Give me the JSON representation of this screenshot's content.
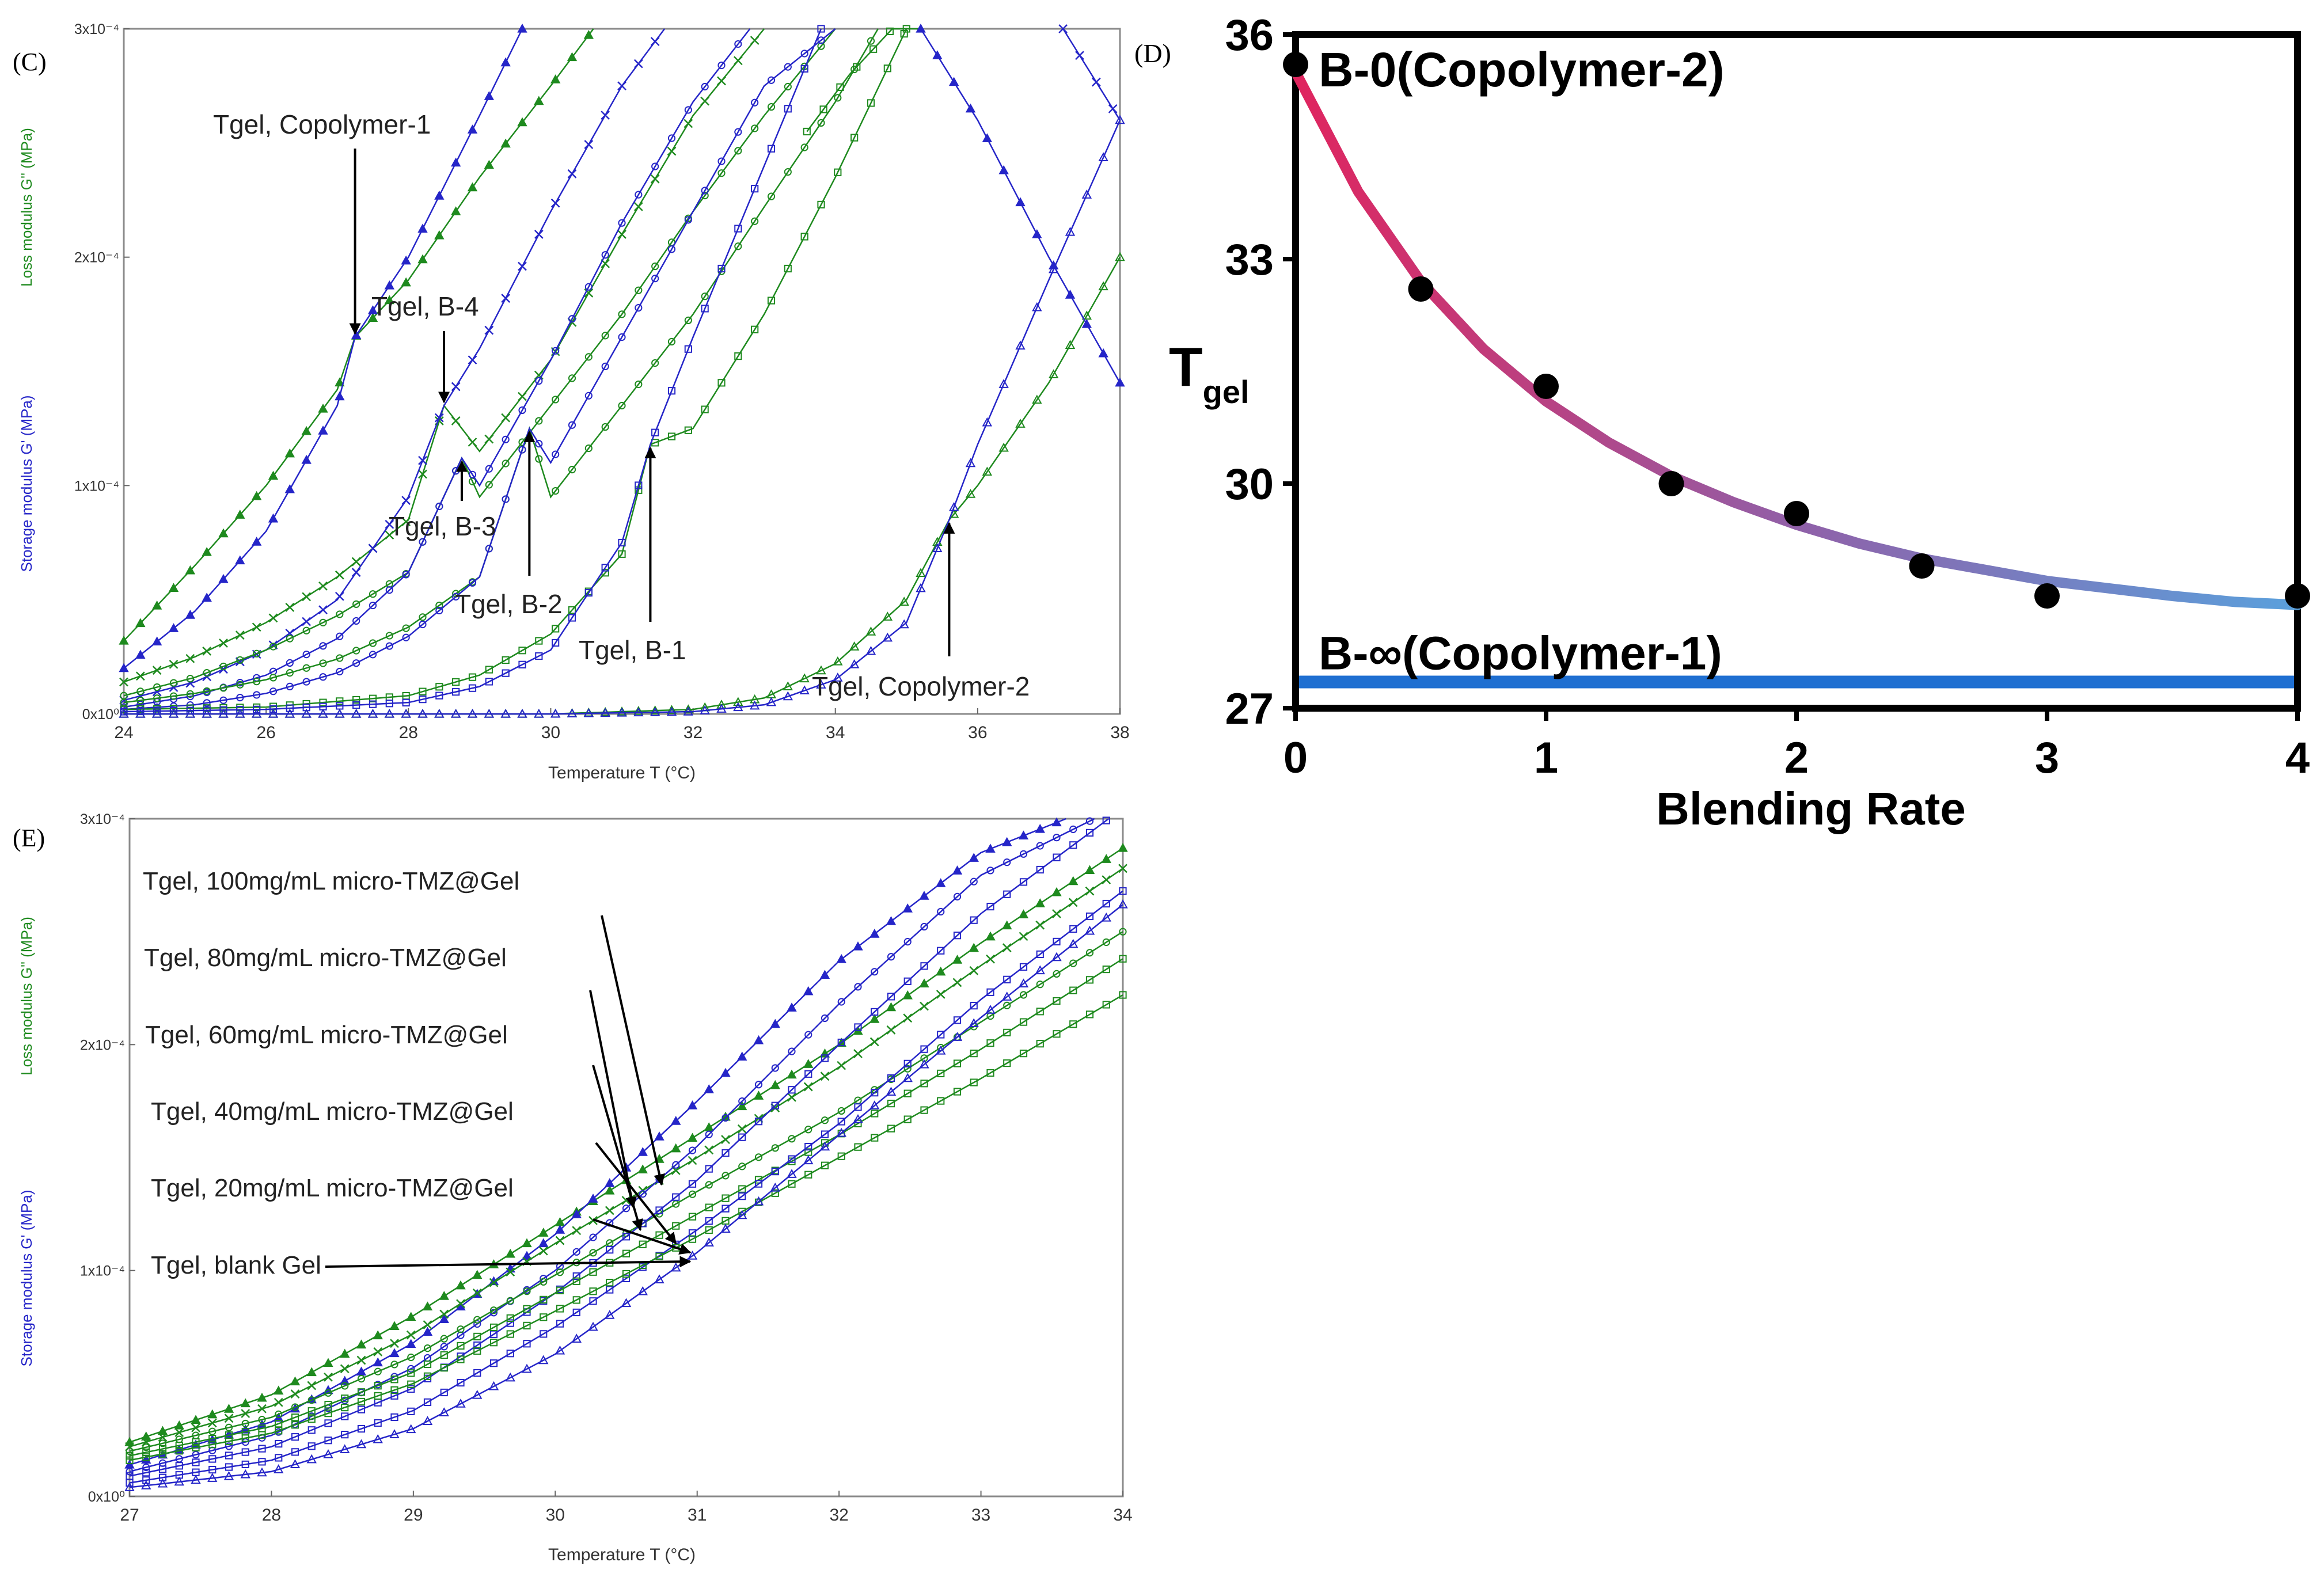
{
  "colors": {
    "green": "#1e8a1e",
    "blue": "#2525c8",
    "light_green": "#66b266",
    "light_blue": "#7a7ad8",
    "line_blue": "#1f6fd1",
    "curve_start": "#e0245e",
    "curve_end": "#5aa0dc",
    "axis": "#000000"
  },
  "chart_data": [
    {
      "panel": "(C)",
      "type": "line",
      "xlabel": "Temperature T (°C)",
      "ylabel_loss": "Loss modulus G'' (MPa)",
      "ylabel_storage": "Storage modulus G' (MPa)",
      "xlim": [
        24,
        38
      ],
      "ylim": [
        0,
        0.0003
      ],
      "x_ticks": [
        "24",
        "26",
        "28",
        "30",
        "32",
        "34",
        "36",
        "38"
      ],
      "y_ticks": [
        "0x10⁰",
        "1x10⁻⁴",
        "2x10⁻⁴",
        "3x10⁻⁴"
      ],
      "series": [
        {
          "name": "Copolymer-1 G''",
          "color": "green",
          "marker": "triangle-filled",
          "x": [
            24,
            25,
            26,
            27,
            27.25,
            28,
            29,
            30,
            30.6
          ],
          "y": [
            3.2e-05,
            6.5e-05,
            0.0001,
            0.000142,
            0.000165,
            0.00019,
            0.000235,
            0.000275,
            0.0003
          ]
        },
        {
          "name": "Copolymer-1 G'",
          "color": "blue",
          "marker": "triangle-filled",
          "x": [
            24,
            25,
            26,
            27,
            27.25,
            28,
            29,
            29.6
          ],
          "y": [
            2e-05,
            4.5e-05,
            8e-05,
            0.000135,
            0.000165,
            0.0002,
            0.000262,
            0.0003
          ]
        },
        {
          "name": "B-4 G''",
          "color": "green",
          "marker": "cross",
          "x": [
            24,
            25,
            26,
            27,
            28,
            28.5,
            29,
            30,
            31,
            32,
            33
          ],
          "y": [
            1.4e-05,
            2.5e-05,
            4e-05,
            6e-05,
            8.5e-05,
            0.000135,
            0.000115,
            0.000155,
            0.00021,
            0.000262,
            0.0003
          ]
        },
        {
          "name": "B-4 G'",
          "color": "blue",
          "marker": "cross",
          "x": [
            24,
            25,
            26,
            27,
            28,
            28.5,
            29,
            30,
            31,
            31.6
          ],
          "y": [
            6e-06,
            1.4e-05,
            2.8e-05,
            5e-05,
            9.5e-05,
            0.000135,
            0.00016,
            0.00022,
            0.000275,
            0.0003
          ]
        },
        {
          "name": "B-3 G''",
          "color": "green",
          "marker": "circle",
          "x": [
            24,
            25,
            26,
            27,
            28,
            28.75,
            29,
            30,
            31,
            32,
            33,
            34
          ],
          "y": [
            8e-06,
            1.6e-05,
            2.8e-05,
            4.3e-05,
            6.2e-05,
            0.000112,
            9.5e-05,
            0.000135,
            0.000175,
            0.00022,
            0.000262,
            0.0003
          ]
        },
        {
          "name": "B-3 G'",
          "color": "blue",
          "marker": "circle",
          "x": [
            24,
            25,
            26,
            27,
            28,
            28.75,
            29,
            30,
            31,
            32,
            32.8
          ],
          "y": [
            3e-06,
            8e-06,
            1.7e-05,
            3.3e-05,
            6.2e-05,
            0.000112,
            0.0001,
            0.000155,
            0.000215,
            0.000268,
            0.0003
          ]
        },
        {
          "name": "B-2 G''",
          "color": "green",
          "marker": "circle",
          "x": [
            24,
            25,
            26,
            27,
            28,
            29,
            29.7,
            30,
            31,
            32,
            33,
            34,
            34.6
          ],
          "y": [
            5e-06,
            9e-06,
            1.5e-05,
            2.4e-05,
            3.8e-05,
            6e-05,
            0.000125,
            9.5e-05,
            0.000135,
            0.000175,
            0.000222,
            0.000268,
            0.0003
          ]
        },
        {
          "name": "B-2 G'",
          "color": "blue",
          "marker": "circle",
          "x": [
            24,
            25,
            26,
            27,
            28,
            29,
            29.7,
            30,
            31,
            32,
            33,
            34
          ],
          "y": [
            2e-06,
            4e-06,
            9e-06,
            1.8e-05,
            3.4e-05,
            6e-05,
            0.000125,
            0.00011,
            0.000165,
            0.00022,
            0.000275,
            0.0003
          ]
        },
        {
          "name": "B-1 G''",
          "color": "green",
          "marker": "square",
          "x": [
            24,
            26,
            28,
            29,
            30,
            31,
            31.4,
            32,
            33,
            34,
            35
          ],
          "y": [
            2e-06,
            3e-06,
            8e-06,
            1.7e-05,
            3.5e-05,
            7e-05,
            0.000118,
            0.000125,
            0.000175,
            0.000235,
            0.0003
          ]
        },
        {
          "name": "B-1 G'",
          "color": "blue",
          "marker": "square",
          "x": [
            24,
            26,
            28,
            29,
            30,
            31,
            31.4,
            32,
            33,
            33.8
          ],
          "y": [
            1e-06,
            2e-06,
            5e-06,
            1.2e-05,
            2.8e-05,
            7.5e-05,
            0.000118,
            0.000165,
            0.00024,
            0.0003
          ]
        },
        {
          "name": "Copolymer-2 G''",
          "color": "green",
          "marker": "triangle",
          "x": [
            24,
            30,
            32,
            33,
            34,
            35,
            35.6,
            36,
            37,
            38
          ],
          "y": [
            0,
            0,
            2e-06,
            7e-06,
            2.2e-05,
            5e-05,
            8.5e-05,
            0.0001,
            0.000145,
            0.0002
          ]
        },
        {
          "name": "Copolymer-2 G'",
          "color": "blue",
          "marker": "triangle",
          "x": [
            24,
            30,
            32,
            33,
            34,
            35,
            35.6,
            36,
            37,
            38
          ],
          "y": [
            0,
            0,
            1e-06,
            4e-06,
            1.5e-05,
            4e-05,
            8.5e-05,
            0.000118,
            0.00019,
            0.00026
          ]
        },
        {
          "name": "Copolymer-2 G'' (upper)",
          "color": "green",
          "marker": "square",
          "x": [
            33.6,
            34.2,
            34.8,
            35.2
          ],
          "y": [
            0.000255,
            0.00028,
            0.0003,
            0.0003
          ]
        },
        {
          "name": "Copolymer-1 G' (descending)",
          "color": "blue",
          "marker": "triangle-filled",
          "x": [
            35.2,
            36,
            37,
            38
          ],
          "y": [
            0.0003,
            0.00026,
            0.0002,
            0.000145
          ]
        },
        {
          "name": "B-4 G' (descending)",
          "color": "blue",
          "marker": "cross",
          "x": [
            37.2,
            37.6,
            38
          ],
          "y": [
            0.0003,
            0.00028,
            0.00026
          ]
        }
      ],
      "annotations": [
        {
          "text": "Tgel, Copolymer-1",
          "x": 27.25,
          "y": 0.000165,
          "direction": "down"
        },
        {
          "text": "Tgel, B-4",
          "x": 28.5,
          "y": 0.000135,
          "direction": "down"
        },
        {
          "text": "Tgel, B-3",
          "x": 28.75,
          "y": 0.000112,
          "direction": "up"
        },
        {
          "text": "Tgel, B-2",
          "x": 29.7,
          "y": 0.000125,
          "direction": "up"
        },
        {
          "text": "Tgel, B-1",
          "x": 31.4,
          "y": 0.000118,
          "direction": "up"
        },
        {
          "text": "Tgel, Copolymer-2",
          "x": 35.6,
          "y": 8.5e-05,
          "direction": "up"
        }
      ]
    },
    {
      "panel": "(D)",
      "type": "scatter",
      "xlabel": "Blending Rate",
      "ylabel": "T",
      "ylabel_sub": "gel",
      "xlim": [
        0,
        4
      ],
      "ylim": [
        27,
        36
      ],
      "x_ticks": [
        "0",
        "1",
        "2",
        "3",
        "4"
      ],
      "y_ticks": [
        "27",
        "30",
        "33",
        "36"
      ],
      "points": {
        "x": [
          0,
          0.5,
          1,
          1.5,
          2,
          2.5,
          3,
          4
        ],
        "y": [
          35.6,
          32.6,
          31.3,
          30.0,
          29.6,
          28.9,
          28.5,
          28.5
        ]
      },
      "fit": {
        "type": "exponential-decay",
        "x": [
          0,
          0.25,
          0.5,
          0.75,
          1,
          1.25,
          1.5,
          1.75,
          2,
          2.25,
          2.5,
          2.75,
          3,
          3.25,
          3.5,
          3.75,
          4
        ],
        "y": [
          35.5,
          33.9,
          32.7,
          31.8,
          31.1,
          30.55,
          30.1,
          29.75,
          29.45,
          29.2,
          29.0,
          28.85,
          28.7,
          28.6,
          28.5,
          28.42,
          28.38
        ]
      },
      "hline": {
        "y": 27.35,
        "label": "B-∞(Copolymer-1)"
      },
      "label_top": "B-0(Copolymer-2)"
    },
    {
      "panel": "(E)",
      "type": "line",
      "xlabel": "Temperature T (°C)",
      "ylabel_loss": "Loss modulus G'' (MPa)",
      "ylabel_storage": "Storage modulus G' (MPa)",
      "xlim": [
        27,
        34
      ],
      "ylim": [
        0,
        0.0003
      ],
      "x_ticks": [
        "27",
        "28",
        "29",
        "30",
        "31",
        "32",
        "33",
        "34"
      ],
      "y_ticks": [
        "0x10⁰",
        "1x10⁻⁴",
        "2x10⁻⁴",
        "3x10⁻⁴"
      ],
      "series": [
        {
          "name": "100mg/mL G''",
          "color": "green",
          "marker": "triangle-filled",
          "x": [
            27,
            28,
            29,
            30,
            31,
            32,
            33,
            34
          ],
          "y": [
            2.4e-05,
            4.5e-05,
            8e-05,
            0.00012,
            0.00016,
            0.0002,
            0.000245,
            0.000287
          ]
        },
        {
          "name": "100mg/mL G'",
          "color": "blue",
          "marker": "triangle-filled",
          "x": [
            27,
            28,
            29,
            30,
            31,
            32,
            33,
            33.6
          ],
          "y": [
            1.4e-05,
            3.3e-05,
            6.8e-05,
            0.000116,
            0.000175,
            0.000237,
            0.000285,
            0.0003
          ]
        },
        {
          "name": "80mg/mL G''",
          "color": "green",
          "marker": "cross",
          "x": [
            27,
            28,
            29,
            30,
            31,
            32,
            33,
            34
          ],
          "y": [
            2.2e-05,
            4e-05,
            7.2e-05,
            0.000112,
            0.00015,
            0.00019,
            0.000235,
            0.000278
          ]
        },
        {
          "name": "80mg/mL G'",
          "color": "blue",
          "marker": "circle",
          "x": [
            27,
            28,
            29,
            30,
            31,
            32,
            33,
            33.8
          ],
          "y": [
            1.1e-05,
            2.7e-05,
            5.7e-05,
            0.0001,
            0.000155,
            0.000218,
            0.000275,
            0.0003
          ]
        },
        {
          "name": "60mg/mL G''",
          "color": "green",
          "marker": "circle",
          "x": [
            27,
            28,
            29,
            30,
            31,
            32,
            33,
            34
          ],
          "y": [
            2e-05,
            3.5e-05,
            6.2e-05,
            9.8e-05,
            0.000135,
            0.00017,
            0.00021,
            0.00025
          ]
        },
        {
          "name": "60mg/mL G'",
          "color": "blue",
          "marker": "square",
          "x": [
            27,
            28,
            29,
            30,
            31,
            32,
            33,
            33.9
          ],
          "y": [
            9e-06,
            2.2e-05,
            4.8e-05,
            9e-05,
            0.00014,
            0.0002,
            0.000258,
            0.0003
          ]
        },
        {
          "name": "40mg/mL G''",
          "color": "green",
          "marker": "square",
          "x": [
            27,
            28,
            29,
            30,
            31,
            32,
            33,
            34
          ],
          "y": [
            1.8e-05,
            3.1e-05,
            5.5e-05,
            9e-05,
            0.000125,
            0.00016,
            0.000198,
            0.000238
          ]
        },
        {
          "name": "20mg/mL G'",
          "color": "blue",
          "marker": "square",
          "x": [
            27,
            28,
            29,
            30,
            31,
            32,
            33,
            34
          ],
          "y": [
            6e-06,
            1.6e-05,
            3.8e-05,
            7.5e-05,
            0.000118,
            0.000165,
            0.00022,
            0.000268
          ]
        },
        {
          "name": "blank Gel G''",
          "color": "green",
          "marker": "square",
          "x": [
            27,
            28,
            29,
            30,
            31,
            32,
            33,
            34
          ],
          "y": [
            1.6e-05,
            2.8e-05,
            5e-05,
            8.2e-05,
            0.000115,
            0.00015,
            0.000185,
            0.000222
          ]
        },
        {
          "name": "blank Gel G'",
          "color": "blue",
          "marker": "triangle",
          "x": [
            27,
            28,
            29,
            30,
            31,
            32,
            33,
            34
          ],
          "y": [
            4e-06,
            1.1e-05,
            3e-05,
            6.3e-05,
            0.000108,
            0.00016,
            0.000212,
            0.000262
          ]
        }
      ],
      "annotations": [
        {
          "text": "Tgel, 100mg/mL micro-TMZ@Gel",
          "x": 30.75,
          "y": 0.000138
        },
        {
          "text": "Tgel, 80mg/mL micro-TMZ@Gel",
          "x": 30.55,
          "y": 0.000128
        },
        {
          "text": "Tgel, 60mg/mL micro-TMZ@Gel",
          "x": 30.6,
          "y": 0.000118
        },
        {
          "text": "Tgel, 40mg/mL micro-TMZ@Gel",
          "x": 30.85,
          "y": 0.000112
        },
        {
          "text": "Tgel, 20mg/mL micro-TMZ@Gel",
          "x": 30.95,
          "y": 0.000108
        },
        {
          "text": "Tgel, blank Gel",
          "x": 30.95,
          "y": 0.000104
        }
      ]
    }
  ]
}
